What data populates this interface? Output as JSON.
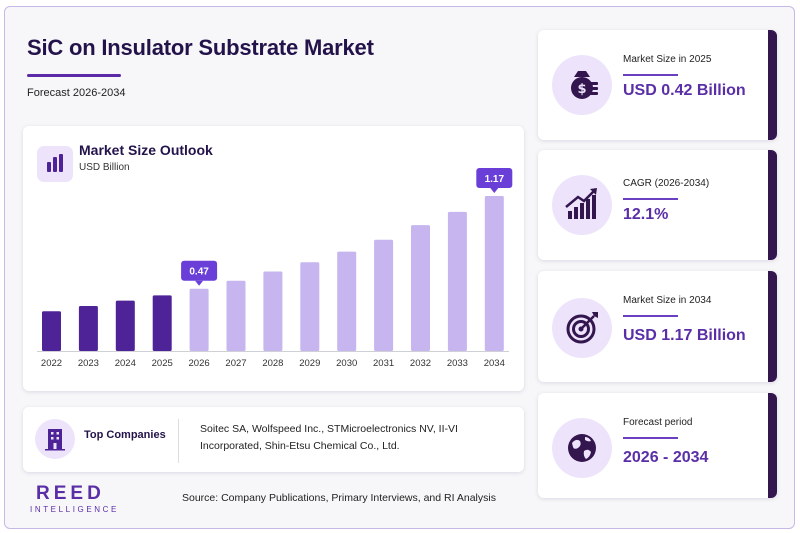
{
  "header": {
    "title": "SiC on Insulator Substrate Market",
    "subtitle": "Forecast 2026-2034"
  },
  "chart_panel": {
    "title": "Market Size Outlook",
    "unit": "USD Billion"
  },
  "chart_data": {
    "type": "bar",
    "categories": [
      "2022",
      "2023",
      "2024",
      "2025",
      "2026",
      "2027",
      "2028",
      "2029",
      "2030",
      "2031",
      "2032",
      "2033",
      "2034"
    ],
    "values": [
      0.3,
      0.34,
      0.38,
      0.42,
      0.47,
      0.53,
      0.6,
      0.67,
      0.75,
      0.84,
      0.95,
      1.05,
      1.17
    ],
    "historical_count": 4,
    "callouts": [
      {
        "category": "2026",
        "label": "0.47"
      },
      {
        "category": "2034",
        "label": "1.17"
      }
    ],
    "colors": {
      "historical": "#4e2398",
      "forecast": "#c6b5ef",
      "callout": "#6a3fd8"
    },
    "grid": false,
    "title": "",
    "xlabel": "",
    "ylabel": "USD Billion"
  },
  "companies": {
    "label": "Top Companies",
    "text": "Soitec SA, Wolfspeed Inc., STMicroelectronics NV, II-VI Incorporated, Shin-Etsu Chemical Co., Ltd."
  },
  "logo": {
    "main": "REED",
    "sub": "INTELLIGENCE"
  },
  "source": "Source: Company Publications, Primary Interviews, and RI Analysis",
  "stats": [
    {
      "label": "Market Size in 2025",
      "value": "USD 0.42 Billion",
      "icon": "money-bag-icon"
    },
    {
      "label": "CAGR (2026-2034)",
      "value": "12.1%",
      "icon": "growth-chart-icon"
    },
    {
      "label": "Market Size in 2034",
      "value": "USD 1.17 Billion",
      "icon": "target-icon"
    },
    {
      "label": "Forecast period",
      "value": "2026 - 2034",
      "icon": "globe-icon"
    }
  ],
  "colors": {
    "accent": "#5a2ea6",
    "dark": "#23134a",
    "card_accent": "#34164f"
  }
}
